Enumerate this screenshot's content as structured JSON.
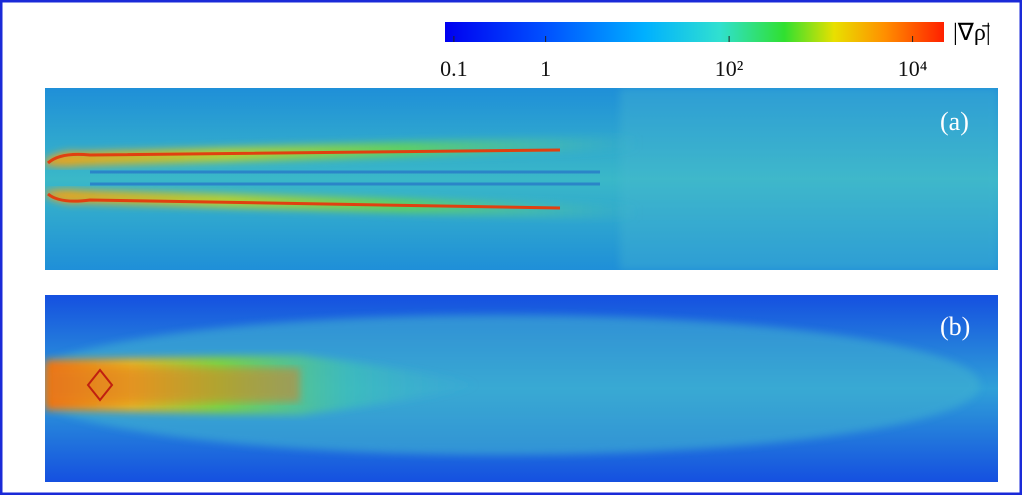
{
  "colorbar": {
    "label": "|∇ρ̄|",
    "range": [
      0.08,
      22000
    ],
    "log": true,
    "ticks": [
      {
        "value": 0.1,
        "label": "0.1"
      },
      {
        "value": 1,
        "label": "1"
      },
      {
        "value": 100,
        "label": "10²"
      },
      {
        "value": 10000,
        "label": "10⁴"
      }
    ]
  },
  "panels": [
    {
      "label": "(a)"
    },
    {
      "label": "(b)"
    }
  ]
}
